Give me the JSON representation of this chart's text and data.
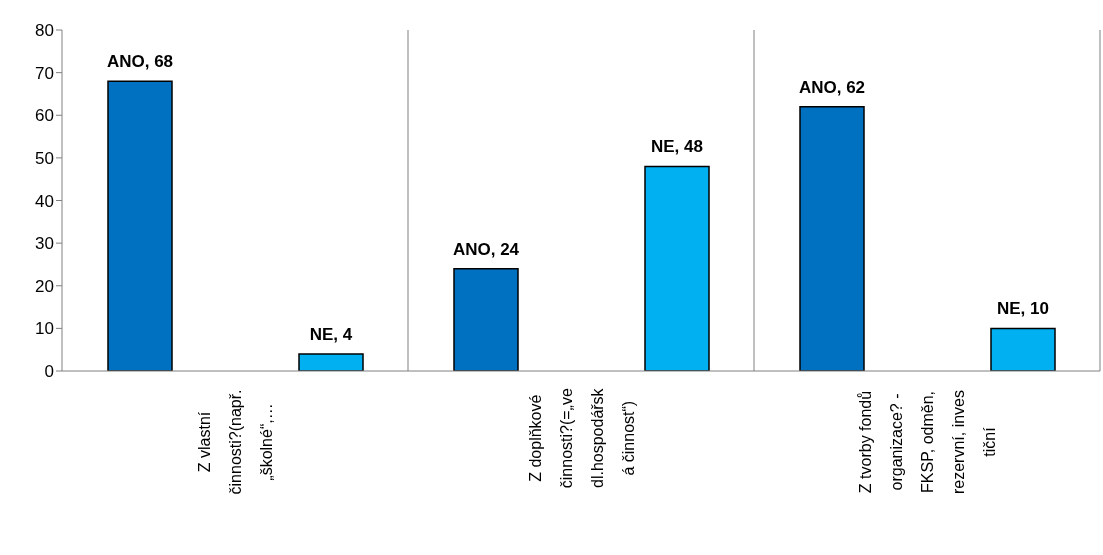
{
  "chart_data": {
    "type": "bar",
    "categories": [
      "Z vlastní\nčinnosti?(např.\n„školné“,…",
      "Z doplňkové\nčinnosti?(=„ve\ndl.hospodářsk\ná činnost“)",
      "Z tvorby fondů\norganizace? -\nFKSP, odměn,\nrezervní, inves\ntiční"
    ],
    "series": [
      {
        "color": "#0070c0",
        "values": [
          68,
          24,
          62
        ],
        "value_labels": [
          "ANO, 68",
          "ANO, 24",
          "ANO, 62"
        ]
      },
      {
        "color": "#00b0f0",
        "values": [
          4,
          48,
          10
        ],
        "value_labels": [
          "NE, 4",
          "NE, 48",
          "NE, 10"
        ]
      }
    ],
    "ylim": [
      0,
      80
    ],
    "yticks": [
      0,
      10,
      20,
      30,
      40,
      50,
      60,
      70,
      80
    ],
    "grid": "x",
    "legend": false
  }
}
